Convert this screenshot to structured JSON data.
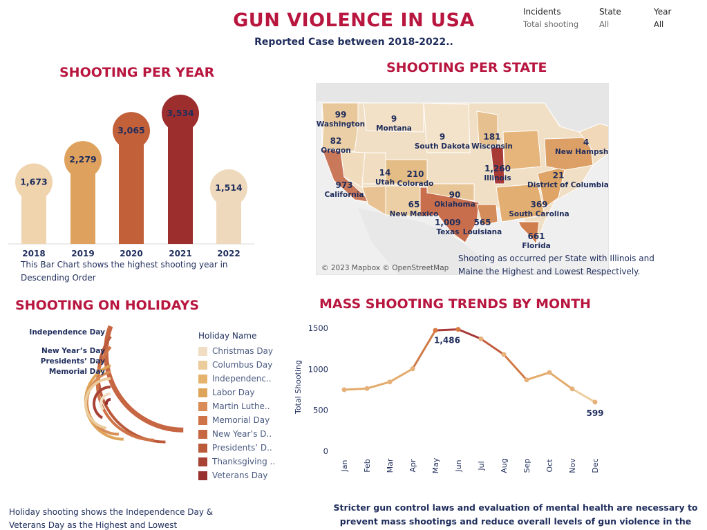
{
  "header": {
    "title": "GUN VIOLENCE IN USA",
    "subtitle": "Reported Case between 2018-2022..",
    "filters": [
      {
        "label": "Incidents",
        "value": "Total shooting"
      },
      {
        "label": "State",
        "value": "All"
      },
      {
        "label": "Year",
        "value": "All"
      }
    ]
  },
  "year_section": {
    "title": "SHOOTING PER YEAR",
    "note": "This Bar Chart shows the highest shooting year in Descending Order"
  },
  "state_section": {
    "title": "SHOOTING PER STATE",
    "credit": "© 2023 Mapbox © OpenStreetMap",
    "note": "Shooting as occurred per State with Illinois and Maine the Highest and Lowest Respectively.",
    "labels": [
      {
        "value": "99",
        "state": "Washington"
      },
      {
        "value": "82",
        "state": "Oregon"
      },
      {
        "value": "9",
        "state": "Montana"
      },
      {
        "value": "9",
        "state": "South Dakota"
      },
      {
        "value": "181",
        "state": "Wisconsin"
      },
      {
        "value": "4",
        "state": "New Hampshire"
      },
      {
        "value": "973",
        "state": "California"
      },
      {
        "value": "14",
        "state": "Utah"
      },
      {
        "value": "210",
        "state": "Colorado"
      },
      {
        "value": "1,260",
        "state": "Illinois"
      },
      {
        "value": "21",
        "state": "District of Columbia"
      },
      {
        "value": "65",
        "state": "New Mexico"
      },
      {
        "value": "90",
        "state": "Oklahoma"
      },
      {
        "value": "369",
        "state": "South Carolina"
      },
      {
        "value": "1,009",
        "state": "Texas"
      },
      {
        "value": "565",
        "state": "Louisiana"
      },
      {
        "value": "661",
        "state": "Florida"
      }
    ]
  },
  "holiday_section": {
    "title": "SHOOTING ON HOLIDAYS",
    "legend_title": "Holiday Name",
    "note": "Holiday shooting shows the Independence Day & Veterans Day as the Highest and Lowest Respective..",
    "ring_labels": [
      "Independence Day",
      "New Year’s Day",
      "Presidents’ Day",
      "Memorial Day"
    ]
  },
  "month_section": {
    "title": "MASS SHOOTING TRENDS BY MONTH",
    "note": "Stricter gun control laws and evaluation of mental health are necessary to prevent mass shootings and reduce overall levels of gun violence in the country."
  },
  "chart_data": [
    {
      "type": "bar",
      "title": "SHOOTING PER YEAR",
      "categories": [
        "2018",
        "2019",
        "2020",
        "2021",
        "2022"
      ],
      "values": [
        1673,
        2279,
        3065,
        3534,
        1514
      ],
      "value_labels": [
        "1,673",
        "2,279",
        "3,065",
        "3,534",
        "1,514"
      ],
      "colors": [
        "#efd4ae",
        "#dfa25e",
        "#c2603a",
        "#9c2e2e",
        "#efd9bc"
      ]
    },
    {
      "type": "pie",
      "title": "SHOOTING ON HOLIDAYS",
      "legend_placement": "right",
      "categories": [
        "Christmas Day",
        "Columbus Day",
        "Independenc..",
        "Labor Day",
        "Martin Luthe..",
        "Memorial Day",
        "New Year’s D..",
        "Presidents’ D..",
        "Thanksgiving ..",
        "Veterans Day"
      ],
      "colors": [
        "#f0ddc4",
        "#ebcc9c",
        "#e6b36e",
        "#dea45a",
        "#d98c55",
        "#cf7449",
        "#c66642",
        "#bb5a3a",
        "#a84234",
        "#98302d"
      ]
    },
    {
      "type": "line",
      "title": "MASS SHOOTING TRENDS BY MONTH",
      "ylabel": "Total Shooting",
      "ylim": [
        0,
        1500
      ],
      "y_ticks": [
        0,
        500,
        1000,
        1500
      ],
      "categories": [
        "Jan",
        "Feb",
        "Mar",
        "Apr",
        "May",
        "Jun",
        "Jul",
        "Aug",
        "Sep",
        "Oct",
        "Nov",
        "Dec"
      ],
      "values": [
        750,
        765,
        845,
        1005,
        1474,
        1486,
        1370,
        1180,
        870,
        960,
        760,
        599
      ],
      "annotations": [
        {
          "category": "Jun",
          "label": "1,486"
        },
        {
          "category": "Dec",
          "label": "599"
        }
      ]
    }
  ]
}
